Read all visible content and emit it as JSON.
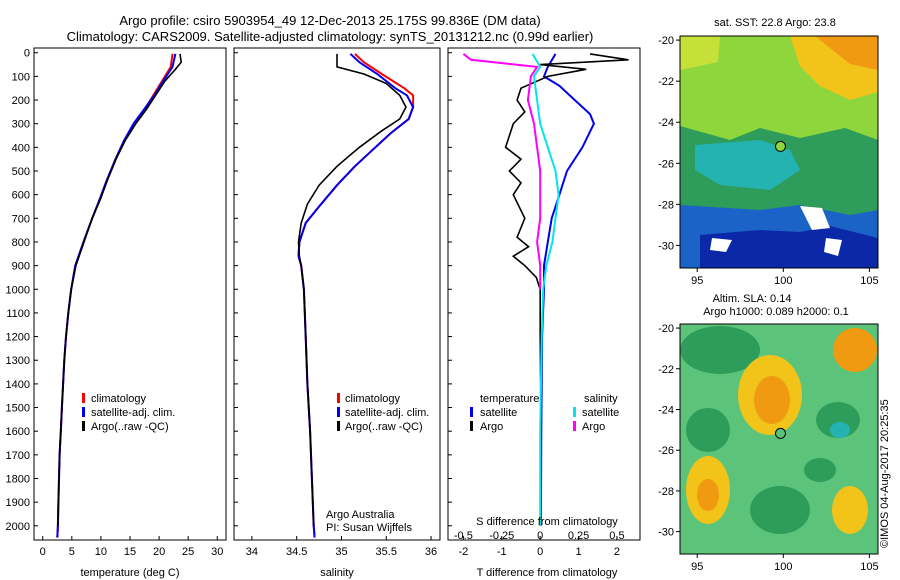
{
  "title_line1": "Argo profile: csiro 5903954_49 12-Dec-2013 25.175S 99.836E (DM data)",
  "title_line2": "Climatology: CARS2009. Satellite-adjusted climatology: synTS_20131212.nc (0.99d earlier)",
  "stamp": "©IMOS 04-Aug-2017 20:25:35",
  "colors": {
    "clim": "#ff0000",
    "sat": "#0000ee",
    "argo": "#000000",
    "sal_sat": "#00e5ee",
    "sal_argo": "#ff00ff"
  },
  "depth_axis": {
    "ticks": [
      0,
      100,
      200,
      300,
      400,
      500,
      600,
      700,
      800,
      900,
      1000,
      1100,
      1200,
      1300,
      1400,
      1500,
      1600,
      1700,
      1800,
      1900,
      2000
    ],
    "ylim": [
      -20,
      2060
    ]
  },
  "chart_data": [
    {
      "id": "temperature",
      "type": "line",
      "xlabel": "temperature (deg C)",
      "xlim": [
        -1.5,
        31.5
      ],
      "xticks": [
        0,
        5,
        10,
        15,
        20,
        25,
        30
      ],
      "xtick_labels": [
        "0",
        "5",
        "10",
        "15",
        "20",
        "25",
        "30"
      ],
      "legend": [
        "climatology",
        "satellite-adj. clim.",
        "Argo(..raw -QC)"
      ],
      "series": [
        {
          "name": "climatology",
          "color_key": "clim",
          "points": [
            [
              22.3,
              5
            ],
            [
              22.0,
              60
            ],
            [
              20.5,
              120
            ],
            [
              19.0,
              180
            ],
            [
              17.5,
              240
            ],
            [
              15.8,
              300
            ],
            [
              14.0,
              370
            ],
            [
              12.5,
              450
            ],
            [
              11.0,
              540
            ],
            [
              9.8,
              620
            ],
            [
              8.5,
              700
            ],
            [
              7.0,
              800
            ],
            [
              5.6,
              900
            ],
            [
              4.9,
              1000
            ],
            [
              4.4,
              1100
            ],
            [
              4.0,
              1200
            ],
            [
              3.7,
              1300
            ],
            [
              3.5,
              1400
            ],
            [
              3.3,
              1500
            ],
            [
              3.1,
              1600
            ],
            [
              2.9,
              1700
            ],
            [
              2.8,
              1800
            ],
            [
              2.7,
              1900
            ],
            [
              2.6,
              2000
            ],
            [
              2.5,
              2050
            ]
          ]
        },
        {
          "name": "satellite-adj. clim.",
          "color_key": "sat",
          "points": [
            [
              22.8,
              5
            ],
            [
              22.3,
              60
            ],
            [
              20.7,
              120
            ],
            [
              19.2,
              180
            ],
            [
              17.4,
              240
            ],
            [
              15.6,
              300
            ],
            [
              14.0,
              370
            ],
            [
              12.5,
              450
            ],
            [
              11.0,
              540
            ],
            [
              9.8,
              620
            ],
            [
              8.5,
              700
            ],
            [
              7.0,
              800
            ],
            [
              5.6,
              900
            ],
            [
              4.9,
              1000
            ],
            [
              4.4,
              1100
            ],
            [
              4.0,
              1200
            ],
            [
              3.7,
              1300
            ],
            [
              3.5,
              1400
            ],
            [
              3.3,
              1500
            ],
            [
              3.1,
              1600
            ],
            [
              2.9,
              1700
            ],
            [
              2.8,
              1800
            ],
            [
              2.7,
              1900
            ],
            [
              2.6,
              2000
            ],
            [
              2.5,
              2050
            ]
          ]
        },
        {
          "name": "Argo(..raw -QC)",
          "color_key": "argo",
          "points": [
            [
              23.6,
              5
            ],
            [
              23.8,
              40
            ],
            [
              22.8,
              70
            ],
            [
              21.0,
              120
            ],
            [
              19.4,
              180
            ],
            [
              17.8,
              240
            ],
            [
              16.0,
              300
            ],
            [
              14.2,
              370
            ],
            [
              12.6,
              450
            ],
            [
              11.1,
              540
            ],
            [
              9.9,
              620
            ],
            [
              8.5,
              700
            ],
            [
              7.1,
              800
            ],
            [
              5.7,
              900
            ],
            [
              4.9,
              1000
            ],
            [
              4.4,
              1100
            ],
            [
              4.0,
              1200
            ],
            [
              3.7,
              1300
            ],
            [
              3.5,
              1400
            ],
            [
              3.3,
              1500
            ],
            [
              3.1,
              1600
            ],
            [
              2.9,
              1700
            ],
            [
              2.8,
              1800
            ],
            [
              2.7,
              1900
            ],
            [
              2.6,
              2000
            ]
          ]
        }
      ]
    },
    {
      "id": "salinity",
      "type": "line",
      "xlabel": "salinity",
      "xlim": [
        33.8,
        36.1
      ],
      "xticks": [
        34,
        34.5,
        35,
        35.5,
        36
      ],
      "xtick_labels": [
        "34",
        "34.5",
        "35",
        "35.5",
        "36"
      ],
      "legend": [
        "climatology",
        "satellite-adj. clim.",
        "Argo(..raw -QC)"
      ],
      "notes": [
        "Argo Australia",
        "PI: Susan Wijffels"
      ],
      "series": [
        {
          "name": "climatology",
          "color_key": "clim",
          "points": [
            [
              35.15,
              5
            ],
            [
              35.25,
              40
            ],
            [
              35.45,
              90
            ],
            [
              35.7,
              150
            ],
            [
              35.8,
              180
            ],
            [
              35.8,
              230
            ],
            [
              35.75,
              280
            ],
            [
              35.55,
              340
            ],
            [
              35.35,
              410
            ],
            [
              35.15,
              480
            ],
            [
              34.95,
              560
            ],
            [
              34.75,
              650
            ],
            [
              34.6,
              720
            ],
            [
              34.53,
              800
            ],
            [
              34.52,
              860
            ],
            [
              34.55,
              900
            ],
            [
              34.58,
              1000
            ],
            [
              34.6,
              1200
            ],
            [
              34.62,
              1400
            ],
            [
              34.65,
              1600
            ],
            [
              34.67,
              1800
            ],
            [
              34.69,
              2000
            ],
            [
              34.7,
              2050
            ]
          ]
        },
        {
          "name": "satellite-adj. clim.",
          "color_key": "sat",
          "points": [
            [
              35.1,
              5
            ],
            [
              35.2,
              40
            ],
            [
              35.4,
              90
            ],
            [
              35.6,
              150
            ],
            [
              35.73,
              180
            ],
            [
              35.8,
              230
            ],
            [
              35.75,
              280
            ],
            [
              35.55,
              340
            ],
            [
              35.35,
              410
            ],
            [
              35.15,
              480
            ],
            [
              34.95,
              560
            ],
            [
              34.75,
              650
            ],
            [
              34.6,
              720
            ],
            [
              34.53,
              800
            ],
            [
              34.52,
              860
            ],
            [
              34.55,
              900
            ],
            [
              34.58,
              1000
            ],
            [
              34.6,
              1200
            ],
            [
              34.62,
              1400
            ],
            [
              34.65,
              1600
            ],
            [
              34.67,
              1800
            ],
            [
              34.69,
              2000
            ],
            [
              34.7,
              2050
            ]
          ]
        },
        {
          "name": "Argo(..raw -QC)",
          "color_key": "argo",
          "points": [
            [
              34.95,
              5
            ],
            [
              34.95,
              60
            ],
            [
              35.25,
              90
            ],
            [
              35.5,
              130
            ],
            [
              35.65,
              180
            ],
            [
              35.72,
              230
            ],
            [
              35.65,
              280
            ],
            [
              35.45,
              330
            ],
            [
              35.2,
              400
            ],
            [
              34.95,
              480
            ],
            [
              34.75,
              560
            ],
            [
              34.62,
              640
            ],
            [
              34.55,
              720
            ],
            [
              34.52,
              800
            ],
            [
              34.53,
              860
            ],
            [
              34.55,
              900
            ],
            [
              34.58,
              1000
            ],
            [
              34.6,
              1200
            ],
            [
              34.62,
              1400
            ],
            [
              34.65,
              1600
            ],
            [
              34.67,
              1800
            ],
            [
              34.69,
              2000
            ]
          ]
        }
      ]
    },
    {
      "id": "difference",
      "type": "line",
      "xlabel": "T difference from climatology",
      "xlim": [
        -2.4,
        2.6
      ],
      "xticks": [
        -2,
        -1,
        0,
        1,
        2
      ],
      "xtick_labels": [
        "-2",
        "-1",
        "0",
        "1",
        "2"
      ],
      "x2label": "S difference from climatology",
      "x2ticks": [
        -0.5,
        -0.25,
        0,
        0.25,
        0.5
      ],
      "x2tick_labels": [
        "-0.5",
        "-0.25",
        "0",
        "0.25",
        "0.5"
      ],
      "x2lim": [
        -0.6,
        0.65
      ],
      "legend_temperature_title": "temperature",
      "legend_salinity_title": "salinity",
      "legend_temperature": [
        "satellite",
        "Argo"
      ],
      "legend_salinity": [
        "satellite",
        "Argo"
      ],
      "series": [
        {
          "name": "T satellite",
          "axis": "T",
          "color_key": "sat",
          "points": [
            [
              0.4,
              5
            ],
            [
              0.2,
              60
            ],
            [
              0.1,
              100
            ],
            [
              0.5,
              140
            ],
            [
              0.9,
              200
            ],
            [
              1.3,
              260
            ],
            [
              1.4,
              300
            ],
            [
              1.1,
              400
            ],
            [
              0.7,
              500
            ],
            [
              0.5,
              600
            ],
            [
              0.3,
              700
            ],
            [
              0.2,
              800
            ],
            [
              0.1,
              900
            ],
            [
              0.1,
              1000
            ],
            [
              0.05,
              1200
            ],
            [
              0.03,
              1600
            ],
            [
              0.02,
              2000
            ]
          ]
        },
        {
          "name": "T Argo",
          "axis": "T",
          "color_key": "argo",
          "points": [
            [
              1.3,
              5
            ],
            [
              2.3,
              30
            ],
            [
              0.0,
              50
            ],
            [
              1.2,
              70
            ],
            [
              0.2,
              100
            ],
            [
              -0.5,
              150
            ],
            [
              -0.6,
              200
            ],
            [
              -0.4,
              250
            ],
            [
              -0.7,
              300
            ],
            [
              -0.9,
              400
            ],
            [
              -0.5,
              450
            ],
            [
              -0.8,
              500
            ],
            [
              -0.5,
              550
            ],
            [
              -0.7,
              600
            ],
            [
              -0.4,
              700
            ],
            [
              -0.6,
              780
            ],
            [
              -0.3,
              820
            ],
            [
              -0.7,
              860
            ],
            [
              -0.4,
              900
            ],
            [
              -0.1,
              950
            ],
            [
              0.0,
              1000
            ],
            [
              0.0,
              1200
            ],
            [
              0.02,
              1500
            ],
            [
              0.0,
              2000
            ]
          ]
        },
        {
          "name": "S satellite",
          "axis": "S",
          "color_key": "sal_sat",
          "points": [
            [
              -0.05,
              5
            ],
            [
              0.0,
              60
            ],
            [
              -0.04,
              100
            ],
            [
              -0.02,
              200
            ],
            [
              0.0,
              300
            ],
            [
              0.05,
              400
            ],
            [
              0.1,
              500
            ],
            [
              0.12,
              600
            ],
            [
              0.1,
              700
            ],
            [
              0.08,
              800
            ],
            [
              0.04,
              900
            ],
            [
              0.02,
              1000
            ],
            [
              0.01,
              1200
            ],
            [
              0.0,
              1600
            ],
            [
              0.0,
              2000
            ]
          ]
        },
        {
          "name": "S Argo",
          "axis": "S",
          "color_key": "sal_argo",
          "points": [
            [
              -0.5,
              5
            ],
            [
              -0.45,
              30
            ],
            [
              -0.02,
              60
            ],
            [
              -0.06,
              100
            ],
            [
              -0.08,
              200
            ],
            [
              -0.04,
              300
            ],
            [
              -0.02,
              400
            ],
            [
              0.0,
              500
            ],
            [
              0.0,
              600
            ],
            [
              0.0,
              700
            ],
            [
              -0.02,
              800
            ],
            [
              0.0,
              900
            ],
            [
              0.0,
              1000
            ]
          ]
        }
      ]
    }
  ],
  "maps": [
    {
      "id": "sst",
      "title": "sat. SST: 22.8  Argo: 23.8",
      "xticks": [
        95,
        100,
        105
      ],
      "yticks": [
        -20,
        -22,
        -24,
        -26,
        -28,
        -30
      ],
      "xlim": [
        94,
        105.5
      ],
      "ylim": [
        -31.1,
        -19.8
      ],
      "marker": [
        99.836,
        -25.175
      ]
    },
    {
      "id": "sla",
      "title_line1": "Altim. SLA: 0.14",
      "title_line2": "Argo h1000: 0.089 h2000: 0.1",
      "xticks": [
        95,
        100,
        105
      ],
      "yticks": [
        -20,
        -22,
        -24,
        -26,
        -28,
        -30
      ],
      "xlim": [
        94,
        105.5
      ],
      "ylim": [
        -31.1,
        -19.8
      ],
      "marker": [
        99.836,
        -25.175
      ]
    }
  ]
}
